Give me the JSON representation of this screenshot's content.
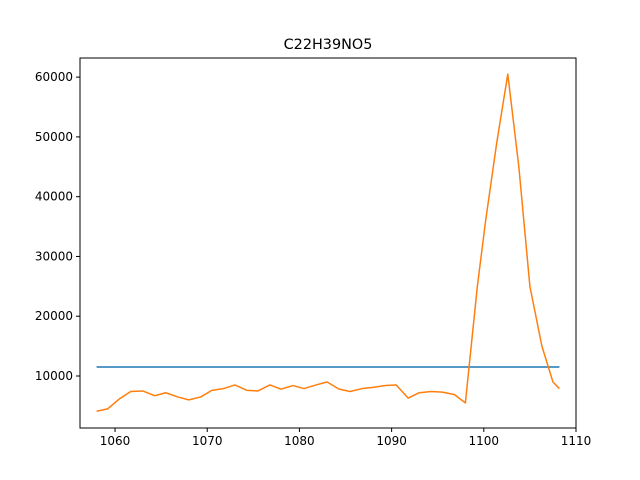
{
  "chart_data": {
    "type": "line",
    "title": "C22H39NO5",
    "xlabel": "",
    "ylabel": "",
    "xlim": [
      1056.2,
      1110.0
    ],
    "ylim": [
      1300,
      63200
    ],
    "x_ticks": [
      1060,
      1070,
      1080,
      1090,
      1100,
      1110
    ],
    "y_ticks": [
      10000,
      20000,
      30000,
      40000,
      50000,
      60000
    ],
    "grid": false,
    "legend": "none",
    "series": [
      {
        "color": "#1f77b4",
        "x": [
          1058.0,
          1108.2
        ],
        "y": [
          11500,
          11500
        ]
      },
      {
        "color": "#ff7f0e",
        "x": [
          1058.0,
          1059.2,
          1060.5,
          1061.7,
          1063.0,
          1064.3,
          1065.5,
          1066.8,
          1068.0,
          1069.3,
          1070.5,
          1071.8,
          1073.0,
          1074.3,
          1075.5,
          1076.8,
          1078.0,
          1079.3,
          1080.5,
          1081.8,
          1083.0,
          1084.3,
          1085.5,
          1086.8,
          1088.0,
          1089.3,
          1090.5,
          1091.8,
          1093.0,
          1094.3,
          1095.5,
          1096.8,
          1098.0,
          1099.3,
          1100.2,
          1101.4,
          1102.6,
          1103.8,
          1105.0,
          1106.3,
          1107.5,
          1108.2
        ],
        "y": [
          4100,
          4500,
          6200,
          7400,
          7500,
          6700,
          7200,
          6500,
          6000,
          6500,
          7600,
          7900,
          8500,
          7600,
          7500,
          8500,
          7800,
          8400,
          7900,
          8500,
          9000,
          7800,
          7400,
          7900,
          8100,
          8400,
          8500,
          6300,
          7200,
          7400,
          7300,
          6900,
          5500,
          25000,
          36000,
          49000,
          60500,
          45000,
          25000,
          15000,
          9000,
          7900
        ]
      }
    ]
  }
}
